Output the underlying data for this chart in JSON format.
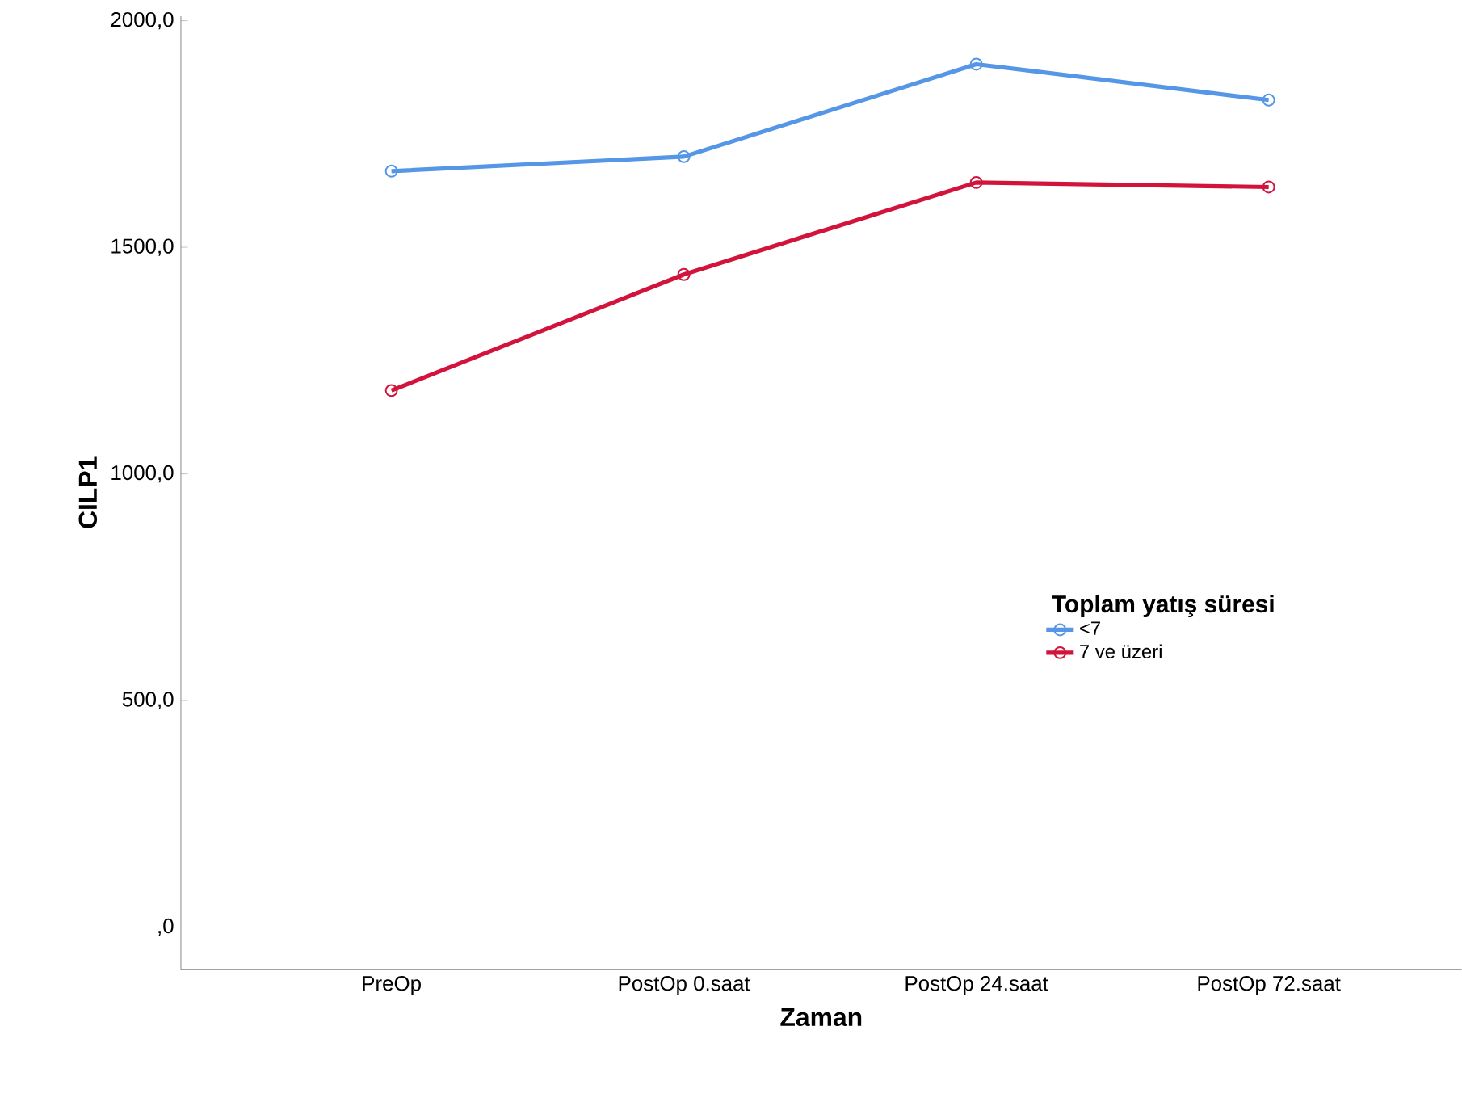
{
  "chart_data": {
    "type": "line",
    "xlabel": "Zaman",
    "ylabel": "CILP1",
    "legend_title": "Toplam yatış süresi",
    "categories": [
      "PreOp",
      "PostOp 0.saat",
      "PostOp 24.saat",
      "PostOp 72.saat"
    ],
    "series": [
      {
        "name": "<7",
        "color": "#5596e6",
        "values": [
          1668,
          1700,
          1904,
          1825
        ]
      },
      {
        "name": "7 ve üzeri",
        "color": "#d2143c",
        "values": [
          1184,
          1440,
          1643,
          1633
        ]
      }
    ],
    "ylim": [
      -93,
      2010
    ],
    "yticks": [
      {
        "value": 0,
        "label": ",0"
      },
      {
        "value": 500,
        "label": "500,0"
      },
      {
        "value": 1000,
        "label": "1000,0"
      },
      {
        "value": 1500,
        "label": "1500,0"
      },
      {
        "value": 2000,
        "label": "2000,0"
      }
    ],
    "marker": "circle",
    "line_style": "solid",
    "legend": "right",
    "grid": false
  }
}
